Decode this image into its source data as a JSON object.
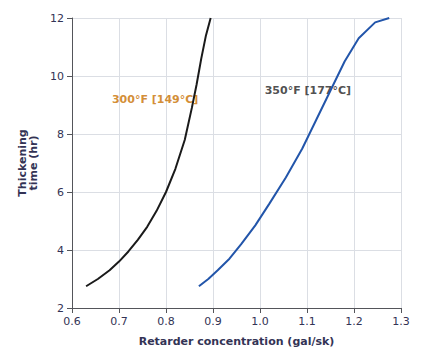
{
  "chart_data": {
    "type": "line",
    "xlabel": "Retarder concentration (gal/sk)",
    "ylabel": "Thickening\ntime (hr)",
    "xlim": [
      0.6,
      1.3
    ],
    "ylim": [
      2,
      12
    ],
    "xticks": [
      0.6,
      0.7,
      0.8,
      0.9,
      {
        "value": 1.0,
        "label": "1.0"
      },
      1.1,
      1.2,
      1.3
    ],
    "yticks": [
      2,
      4,
      6,
      8,
      10,
      12
    ],
    "grid": true,
    "series": [
      {
        "color": "#1a1a1a",
        "x": [
          0.63,
          0.655,
          0.68,
          0.7,
          0.72,
          0.74,
          0.76,
          0.78,
          0.8,
          0.82,
          0.84,
          0.855,
          0.865,
          0.875,
          0.885,
          0.895
        ],
        "values": [
          2.75,
          3.0,
          3.3,
          3.6,
          3.95,
          4.35,
          4.8,
          5.35,
          6.0,
          6.8,
          7.8,
          8.9,
          9.7,
          10.6,
          11.4,
          12.0
        ]
      },
      {
        "color": "#2255aa",
        "x": [
          0.87,
          0.89,
          0.91,
          0.935,
          0.96,
          0.99,
          1.02,
          1.055,
          1.09,
          1.12,
          1.15,
          1.18,
          1.21,
          1.245,
          1.275
        ],
        "values": [
          2.75,
          3.0,
          3.3,
          3.7,
          4.2,
          4.85,
          5.6,
          6.5,
          7.5,
          8.5,
          9.5,
          10.5,
          11.3,
          11.85,
          12.0
        ]
      }
    ],
    "annotations": [
      {
        "x": 0.685,
        "y": 9.2,
        "text": "300°F [149°C]",
        "color": "#c87000"
      },
      {
        "x": 1.01,
        "y": 9.5,
        "text": "350°F [177°C]",
        "color": "#222222"
      }
    ]
  }
}
